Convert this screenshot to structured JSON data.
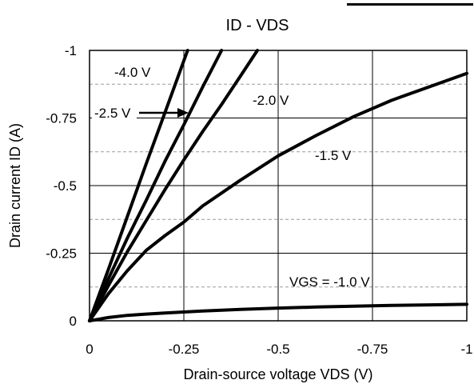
{
  "chart_data": {
    "type": "line",
    "title": "ID - VDS",
    "xlabel": "Drain-source voltage VDS (V)",
    "ylabel": "Drain current ID (A)",
    "xlim": [
      0,
      -1
    ],
    "ylim": [
      0,
      -1
    ],
    "x_ticks": [
      "0",
      "-0.25",
      "-0.5",
      "-0.75",
      "-1"
    ],
    "y_ticks": [
      "0",
      "-0.25",
      "-0.5",
      "-0.75",
      "-1"
    ],
    "x_tick_values": [
      0,
      -0.25,
      -0.5,
      -0.75,
      -1
    ],
    "y_tick_values": [
      0,
      -0.25,
      -0.5,
      -0.75,
      -1
    ],
    "minor_grid_y": [
      -0.125,
      -0.375,
      -0.625,
      -0.875
    ],
    "grid": true,
    "series": [
      {
        "name": "-4.0 V",
        "x": [
          0,
          -0.05,
          -0.1,
          -0.15,
          -0.2,
          -0.26
        ],
        "y": [
          0,
          -0.19,
          -0.385,
          -0.58,
          -0.77,
          -1.0
        ]
      },
      {
        "name": "-2.5 V",
        "x": [
          0,
          -0.05,
          -0.1,
          -0.15,
          -0.2,
          -0.25,
          -0.3,
          -0.35
        ],
        "y": [
          0,
          -0.155,
          -0.305,
          -0.445,
          -0.59,
          -0.725,
          -0.865,
          -1.0
        ]
      },
      {
        "name": "-2.0 V",
        "x": [
          0,
          -0.05,
          -0.1,
          -0.15,
          -0.2,
          -0.25,
          -0.3,
          -0.35,
          -0.4,
          -0.445
        ],
        "y": [
          0,
          -0.13,
          -0.255,
          -0.37,
          -0.485,
          -0.595,
          -0.7,
          -0.8,
          -0.905,
          -1.0
        ]
      },
      {
        "name": "-1.5 V",
        "x": [
          0,
          -0.05,
          -0.1,
          -0.15,
          -0.2,
          -0.25,
          -0.3,
          -0.4,
          -0.5,
          -0.6,
          -0.7,
          -0.8,
          -0.9,
          -1.0
        ],
        "y": [
          0,
          -0.1,
          -0.185,
          -0.26,
          -0.315,
          -0.365,
          -0.425,
          -0.52,
          -0.61,
          -0.685,
          -0.755,
          -0.815,
          -0.865,
          -0.915
        ]
      },
      {
        "name": "VGS = -1.0 V",
        "x": [
          0,
          -0.05,
          -0.1,
          -0.15,
          -0.2,
          -0.3,
          -0.4,
          -0.5,
          -0.6,
          -0.7,
          -0.8,
          -0.9,
          -1.0
        ],
        "y": [
          0,
          -0.012,
          -0.02,
          -0.025,
          -0.029,
          -0.036,
          -0.042,
          -0.047,
          -0.051,
          -0.054,
          -0.057,
          -0.059,
          -0.061
        ]
      }
    ],
    "annotations": [
      {
        "text": "-4.0 V",
        "series": 0
      },
      {
        "text": "-2.5 V",
        "series": 1,
        "arrow": true
      },
      {
        "text": "-2.0 V",
        "series": 2
      },
      {
        "text": "-1.5 V",
        "series": 3
      },
      {
        "text": "VGS = -1.0 V",
        "series": 4
      }
    ]
  }
}
